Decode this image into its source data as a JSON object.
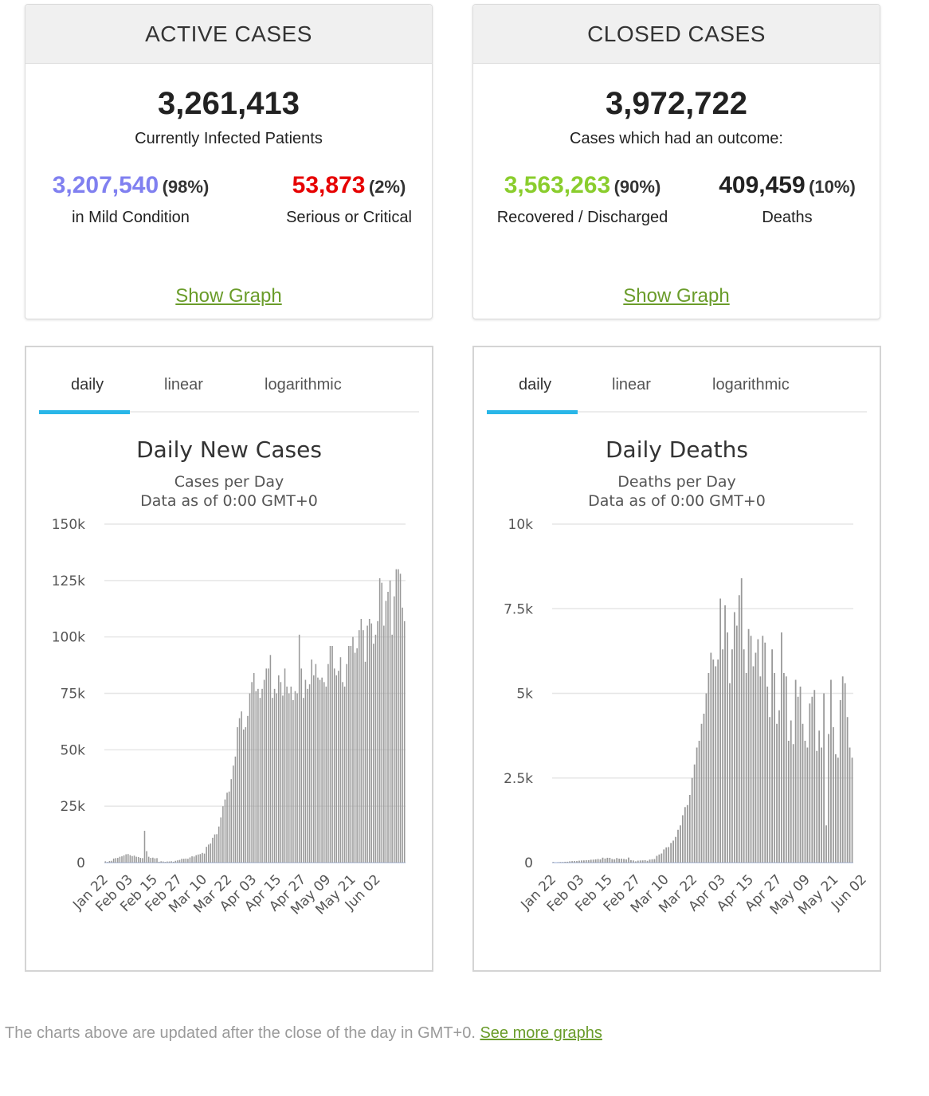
{
  "active": {
    "title": "ACTIVE CASES",
    "total": "3,261,413",
    "subtitle": "Currently Infected Patients",
    "mild": {
      "value": "3,207,540",
      "pct": "(98%)",
      "label": "in Mild Condition",
      "color": "#8080f0"
    },
    "serious": {
      "value": "53,873",
      "pct": "(2%)",
      "label": "Serious or Critical",
      "color": "#e60000"
    },
    "link": "Show Graph"
  },
  "closed": {
    "title": "CLOSED CASES",
    "total": "3,972,722",
    "subtitle": "Cases which had an outcome:",
    "recovered": {
      "value": "3,563,263",
      "pct": "(90%)",
      "label": "Recovered / Discharged",
      "color": "#8acd2d"
    },
    "deaths": {
      "value": "409,459",
      "pct": "(10%)",
      "label": "Deaths",
      "color": "#222222"
    },
    "link": "Show Graph"
  },
  "tabs": [
    "daily",
    "linear",
    "logarithmic"
  ],
  "footer": {
    "text": "The charts above are updated after the close of the day in GMT+0.",
    "link": "See more graphs"
  },
  "chart_data": [
    {
      "type": "bar",
      "title": "Daily New Cases",
      "subtitle": "Cases per Day",
      "subtitle2": "Data as of 0:00 GMT+0",
      "yticks": [
        "0",
        "25k",
        "50k",
        "75k",
        "100k",
        "125k",
        "150k"
      ],
      "ylim": [
        0,
        150000
      ],
      "xticks": [
        "Jan 22",
        "Feb 03",
        "Feb 15",
        "Feb 27",
        "Mar 10",
        "Mar 22",
        "Apr 03",
        "Apr 15",
        "Apr 27",
        "May 09",
        "May 21",
        "Jun 02"
      ],
      "grid": true,
      "bar_color": "#999999",
      "values": [
        580,
        270,
        700,
        800,
        1800,
        2000,
        2100,
        2600,
        2800,
        3200,
        3700,
        3800,
        3300,
        2900,
        3100,
        2600,
        2500,
        2100,
        2000,
        14100,
        5100,
        2600,
        2100,
        2200,
        1900,
        2000,
        400,
        600,
        500,
        300,
        500,
        500,
        600,
        400,
        800,
        1000,
        1200,
        1700,
        1700,
        1800,
        1700,
        2300,
        2800,
        2700,
        3300,
        3600,
        3800,
        4300,
        4000,
        7000,
        8000,
        8500,
        11000,
        12500,
        12600,
        16000,
        20000,
        25000,
        28000,
        31000,
        31500,
        37000,
        43000,
        47000,
        60000,
        64000,
        67000,
        59000,
        60000,
        65000,
        75000,
        80000,
        84000,
        76000,
        77000,
        73000,
        77000,
        81000,
        86000,
        86000,
        92000,
        73000,
        77000,
        75000,
        83000,
        80000,
        74000,
        86000,
        78000,
        75000,
        78000,
        72000,
        76000,
        75000,
        101000,
        86000,
        73000,
        81000,
        77000,
        79000,
        90000,
        83000,
        88000,
        82000,
        81000,
        82000,
        80000,
        78000,
        88000,
        96000,
        96000,
        86000,
        83000,
        85000,
        91000,
        80000,
        78000,
        88000,
        96000,
        96000,
        100000,
        93000,
        95000,
        103000,
        108000,
        103000,
        89000,
        105000,
        108000,
        106000,
        97000,
        101000,
        107000,
        126000,
        124000,
        105000,
        116000,
        120000,
        125000,
        101000,
        118000,
        130000,
        130000,
        128000,
        113000,
        107000
      ]
    },
    {
      "type": "bar",
      "title": "Daily Deaths",
      "subtitle": "Deaths per Day",
      "subtitle2": "Data as of 0:00 GMT+0",
      "yticks": [
        "0",
        "2.5k",
        "5k",
        "7.5k",
        "10k"
      ],
      "ylim": [
        0,
        10000
      ],
      "xticks": [
        "Jan 22",
        "Feb 03",
        "Feb 15",
        "Feb 27",
        "Mar 10",
        "Mar 22",
        "Apr 03",
        "Apr 15",
        "Apr 27",
        "May 09",
        "May 21",
        "Jun 02"
      ],
      "grid": true,
      "bar_color": "#999999",
      "values": [
        17,
        0,
        8,
        16,
        15,
        25,
        26,
        38,
        43,
        46,
        45,
        57,
        64,
        66,
        73,
        73,
        86,
        89,
        97,
        108,
        97,
        146,
        121,
        143,
        142,
        105,
        98,
        136,
        116,
        118,
        109,
        97,
        150,
        71,
        64,
        37,
        58,
        64,
        66,
        73,
        53,
        90,
        100,
        104,
        200,
        240,
        270,
        390,
        450,
        460,
        580,
        650,
        760,
        970,
        1100,
        1400,
        1640,
        1700,
        2000,
        2500,
        2900,
        3400,
        3600,
        4100,
        4400,
        5000,
        5600,
        6200,
        6000,
        5800,
        6000,
        7800,
        6300,
        7600,
        6800,
        5300,
        6300,
        7400,
        7000,
        7900,
        8400,
        6300,
        5600,
        6900,
        6700,
        5800,
        6200,
        6600,
        5500,
        6700,
        6500,
        5200,
        4300,
        6300,
        5600,
        4100,
        4500,
        6800,
        5600,
        5500,
        3600,
        4200,
        3500,
        5400,
        4900,
        5200,
        4100,
        3600,
        3400,
        4700,
        4900,
        5100,
        3300,
        3900,
        3400,
        5000,
        1100,
        3800,
        5400,
        4000,
        3200,
        3100,
        4800,
        5500,
        5300,
        4300,
        3400,
        3100
      ]
    }
  ]
}
